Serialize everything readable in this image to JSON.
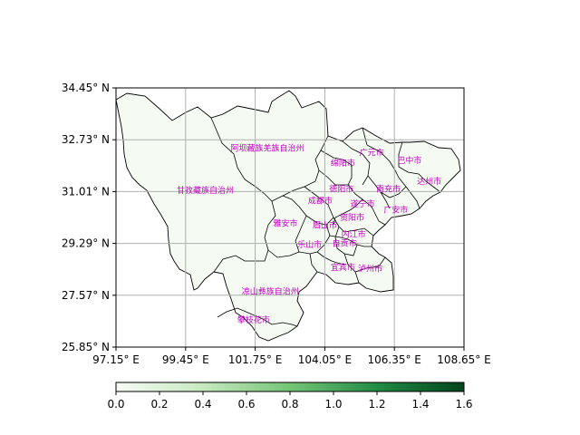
{
  "map": {
    "lat_ticks": [
      "34.45° N",
      "32.73° N",
      "31.01° N",
      "29.29° N",
      "27.57° N",
      "25.85° N"
    ],
    "lon_ticks": [
      "97.15° E",
      "99.45° E",
      "101.75° E",
      "104.05° E",
      "106.35° E",
      "108.65° E"
    ],
    "extent": {
      "lon": [
        97.15,
        108.65
      ],
      "lat": [
        25.85,
        34.45
      ]
    },
    "grid": true,
    "fill_color": "#f5fbf3",
    "border_color": "#000000",
    "label_color": "#c000c0",
    "grid_color": "#b0b0b0"
  },
  "regions": [
    {
      "name": "阿坝藏族羌族自治州",
      "lon": 102.15,
      "lat": 32.45
    },
    {
      "name": "甘孜藏族自治州",
      "lon": 100.1,
      "lat": 31.05
    },
    {
      "name": "广元市",
      "lon": 105.6,
      "lat": 32.3
    },
    {
      "name": "巴中市",
      "lon": 106.85,
      "lat": 32.05
    },
    {
      "name": "绵阳市",
      "lon": 104.65,
      "lat": 31.95
    },
    {
      "name": "达州市",
      "lon": 107.5,
      "lat": 31.35
    },
    {
      "name": "南充市",
      "lon": 106.15,
      "lat": 31.1
    },
    {
      "name": "德阳市",
      "lon": 104.6,
      "lat": 31.1
    },
    {
      "name": "成都市",
      "lon": 103.9,
      "lat": 30.7
    },
    {
      "name": "遂宁市",
      "lon": 105.3,
      "lat": 30.6
    },
    {
      "name": "广安市",
      "lon": 106.4,
      "lat": 30.4
    },
    {
      "name": "资阳市",
      "lon": 104.95,
      "lat": 30.15
    },
    {
      "name": "雅安市",
      "lon": 102.75,
      "lat": 29.95
    },
    {
      "name": "眉山市",
      "lon": 104.05,
      "lat": 29.9
    },
    {
      "name": "内江市",
      "lon": 105.0,
      "lat": 29.6
    },
    {
      "name": "乐山市",
      "lon": 103.55,
      "lat": 29.25
    },
    {
      "name": "自贡市",
      "lon": 104.7,
      "lat": 29.3
    },
    {
      "name": "宜宾市",
      "lon": 104.65,
      "lat": 28.5
    },
    {
      "name": "泸州市",
      "lon": 105.55,
      "lat": 28.45
    },
    {
      "name": "凉山彝族自治州",
      "lon": 102.25,
      "lat": 27.7
    },
    {
      "name": "攀枝花市",
      "lon": 101.7,
      "lat": 26.75
    }
  ],
  "colorbar": {
    "ticks": [
      "0.0",
      "0.2",
      "0.4",
      "0.6",
      "0.8",
      "1.0",
      "1.2",
      "1.4",
      "1.6"
    ],
    "range": [
      0.0,
      1.6
    ],
    "colormap": "Greens",
    "colors": [
      "#f7fcf5",
      "#c7e9c0",
      "#74c476",
      "#238b45",
      "#00441b"
    ]
  }
}
